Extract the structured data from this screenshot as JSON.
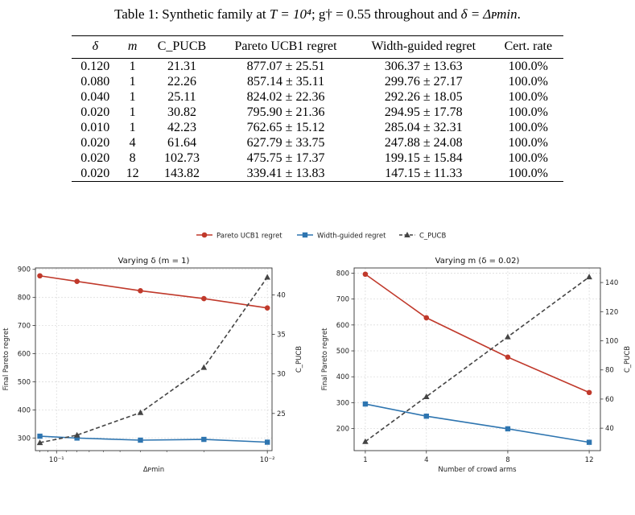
{
  "caption": {
    "prefix": "Table 1: Synthetic family at ",
    "t_value": "T = 10⁴",
    "middle": "; g† = 0.55 throughout and ",
    "delta_eq": "δ = Δᴩmin",
    "suffix": "."
  },
  "table": {
    "headers": [
      "δ",
      "m",
      "C_PUCB",
      "Pareto UCB1 regret",
      "Width-guided regret",
      "Cert. rate"
    ],
    "rows": [
      [
        "0.120",
        "1",
        "21.31",
        "877.07 ± 25.51",
        "306.37 ± 13.63",
        "100.0%"
      ],
      [
        "0.080",
        "1",
        "22.26",
        "857.14 ± 35.11",
        "299.76 ± 27.17",
        "100.0%"
      ],
      [
        "0.040",
        "1",
        "25.11",
        "824.02 ± 22.36",
        "292.26 ± 18.05",
        "100.0%"
      ],
      [
        "0.020",
        "1",
        "30.82",
        "795.90 ± 21.36",
        "294.95 ± 17.78",
        "100.0%"
      ],
      [
        "0.010",
        "1",
        "42.23",
        "762.65 ± 15.12",
        "285.04 ± 32.31",
        "100.0%"
      ],
      [
        "0.020",
        "4",
        "61.64",
        "627.79 ± 33.75",
        "247.88 ± 24.08",
        "100.0%"
      ],
      [
        "0.020",
        "8",
        "102.73",
        "475.75 ± 17.37",
        "199.15 ± 15.84",
        "100.0%"
      ],
      [
        "0.020",
        "12",
        "143.82",
        "339.41 ± 13.83",
        "147.15 ± 11.33",
        "100.0%"
      ]
    ]
  },
  "legend": [
    {
      "label": "Pareto UCB1 regret",
      "color": "#c0392b",
      "marker": "circle",
      "dash": "solid"
    },
    {
      "label": "Width-guided regret",
      "color": "#2e75b0",
      "marker": "square",
      "dash": "solid"
    },
    {
      "label": "C_PUCB",
      "color": "#444444",
      "marker": "triangle",
      "dash": "dashed"
    }
  ],
  "chart_data": [
    {
      "type": "line",
      "title": "Varying δ (m = 1)",
      "xlabel": "Δᴩmin",
      "ylabel": "Final Pareto regret",
      "y2label": "C_PUCB",
      "x_scale": "log, inverted",
      "x": [
        0.12,
        0.08,
        0.04,
        0.02,
        0.01
      ],
      "xlim": [
        0.126,
        0.0095
      ],
      "xticks": [
        {
          "value": 0.1,
          "label": "10⁻¹"
        },
        {
          "value": 0.01,
          "label": "10⁻²"
        }
      ],
      "ylim": [
        255,
        905
      ],
      "yticks": [
        300,
        400,
        500,
        600,
        700,
        800,
        900
      ],
      "y2lim": [
        20.3,
        43.4
      ],
      "y2ticks": [
        25,
        30,
        35,
        40
      ],
      "grid": true,
      "series": [
        {
          "name": "Pareto UCB1 regret",
          "axis": "left",
          "values": [
            877.07,
            857.14,
            824.02,
            795.9,
            762.65
          ]
        },
        {
          "name": "Width-guided regret",
          "axis": "left",
          "values": [
            306.37,
            299.76,
            292.26,
            294.95,
            285.04
          ]
        },
        {
          "name": "C_PUCB",
          "axis": "right",
          "values": [
            21.31,
            22.26,
            25.11,
            30.82,
            42.23
          ]
        }
      ]
    },
    {
      "type": "line",
      "title": "Varying m (δ = 0.02)",
      "xlabel": "Number of crowd arms",
      "ylabel": "Final Pareto regret",
      "y2label": "C_PUCB",
      "x": [
        1,
        4,
        8,
        12
      ],
      "xlim": [
        0.45,
        12.55
      ],
      "xticks": [
        {
          "value": 1,
          "label": "1"
        },
        {
          "value": 4,
          "label": "4"
        },
        {
          "value": 8,
          "label": "8"
        },
        {
          "value": 12,
          "label": "12"
        }
      ],
      "ylim": [
        115,
        820
      ],
      "yticks": [
        200,
        300,
        400,
        500,
        600,
        700,
        800
      ],
      "y2lim": [
        24.6,
        150
      ],
      "y2ticks": [
        40,
        60,
        80,
        100,
        120,
        140
      ],
      "grid": true,
      "series": [
        {
          "name": "Pareto UCB1 regret",
          "axis": "left",
          "values": [
            795.9,
            627.79,
            475.75,
            339.41
          ]
        },
        {
          "name": "Width-guided regret",
          "axis": "left",
          "values": [
            294.95,
            247.88,
            199.15,
            147.15
          ]
        },
        {
          "name": "C_PUCB",
          "axis": "right",
          "values": [
            30.82,
            61.64,
            102.73,
            143.82
          ]
        }
      ]
    }
  ]
}
